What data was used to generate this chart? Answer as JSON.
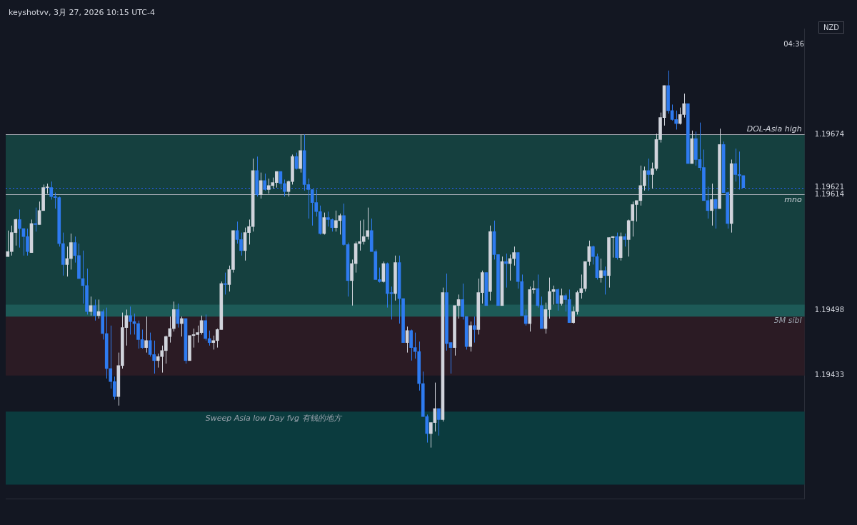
{
  "chart_data": {
    "type": "candlestick",
    "title": "keyshotvv, 3月 27, 2026 10:15 UTC-4",
    "ylabel": "NZD",
    "categories": [
      null,
      null,
      null,
      null,
      null,
      null,
      null,
      null,
      null,
      null,
      null,
      null,
      null,
      null,
      null,
      null,
      null,
      null,
      null,
      null,
      null,
      null,
      null,
      null,
      null,
      null,
      null,
      null,
      null,
      null,
      null,
      null,
      null,
      null,
      null,
      null,
      null,
      null,
      null,
      null,
      null,
      null,
      null,
      null,
      null,
      null,
      null,
      null,
      null,
      null,
      null,
      null,
      null,
      null,
      null,
      null,
      null,
      null,
      null,
      null,
      null,
      null,
      null,
      null,
      null,
      null,
      null,
      null,
      null,
      null,
      null,
      null,
      null,
      null,
      null,
      null,
      null,
      null,
      null,
      null,
      null,
      null,
      null,
      null,
      null,
      null,
      null,
      null,
      null,
      null,
      null,
      null,
      null,
      null,
      null,
      null,
      null,
      null,
      null,
      null,
      null,
      null,
      null,
      null,
      null,
      null,
      null,
      null,
      null,
      null,
      null,
      null,
      null,
      null,
      null,
      null,
      null,
      null,
      null,
      null,
      null,
      null,
      null,
      null,
      null,
      null,
      null,
      null,
      null,
      null,
      null,
      null,
      null,
      null,
      null,
      null,
      null,
      null,
      null,
      null,
      null,
      null,
      null,
      null,
      null,
      null,
      null,
      null,
      null,
      null,
      null,
      null,
      null,
      null,
      null,
      null,
      null,
      null,
      null,
      null,
      null,
      null,
      null,
      null,
      null,
      null,
      null,
      null,
      null,
      null,
      null,
      null,
      null,
      null,
      null,
      null,
      null,
      null,
      null,
      null,
      null,
      null,
      null,
      null,
      null,
      null,
      null,
      null,
      null,
      null,
      null,
      null,
      null,
      null,
      null,
      null,
      null,
      null,
      null,
      null,
      null,
      null
    ],
    "ohlc": [
      [
        1.19552,
        1.19578,
        1.19552,
        1.19557
      ],
      [
        1.19557,
        1.19583,
        1.19553,
        1.19576
      ],
      [
        1.19576,
        1.1959,
        1.19563,
        1.19589
      ],
      [
        1.19589,
        1.19599,
        1.19561,
        1.1958
      ],
      [
        1.1958,
        1.1958,
        1.19553,
        1.19572
      ],
      [
        1.19572,
        1.1958,
        1.19553,
        1.19557
      ],
      [
        1.19556,
        1.19589,
        1.19556,
        1.19585
      ],
      [
        1.19585,
        1.19601,
        1.19577,
        1.19584
      ],
      [
        1.19584,
        1.19607,
        1.19584,
        1.19598
      ],
      [
        1.19598,
        1.19624,
        1.19598,
        1.19621
      ],
      [
        1.19621,
        1.19625,
        1.19615,
        1.19621
      ],
      [
        1.19621,
        1.19627,
        1.19609,
        1.19612
      ],
      [
        1.19612,
        1.19616,
        1.196,
        1.19611
      ],
      [
        1.19611,
        1.19612,
        1.19562,
        1.19565
      ],
      [
        1.19565,
        1.19576,
        1.19533,
        1.19544
      ],
      [
        1.19544,
        1.19562,
        1.19532,
        1.1955
      ],
      [
        1.1955,
        1.19575,
        1.19539,
        1.19566
      ],
      [
        1.19566,
        1.19572,
        1.19546,
        1.19553
      ],
      [
        1.19553,
        1.19565,
        1.1953,
        1.1953
      ],
      [
        1.1953,
        1.19558,
        1.19505,
        1.19523
      ],
      [
        1.19523,
        1.1954,
        1.19494,
        1.19497
      ],
      [
        1.19497,
        1.19512,
        1.19493,
        1.19503
      ],
      [
        1.19503,
        1.19509,
        1.19488,
        1.19493
      ],
      [
        1.19493,
        1.19509,
        1.1949,
        1.19497
      ],
      [
        1.19497,
        1.19499,
        1.19469,
        1.19475
      ],
      [
        1.19475,
        1.19501,
        1.1943,
        1.1944
      ],
      [
        1.1944,
        1.19483,
        1.1942,
        1.19427
      ],
      [
        1.19427,
        1.19432,
        1.19409,
        1.19412
      ],
      [
        1.19412,
        1.19456,
        1.19403,
        1.19443
      ],
      [
        1.19443,
        1.19496,
        1.1944,
        1.19481
      ],
      [
        1.19481,
        1.19499,
        1.19463,
        1.19493
      ],
      [
        1.19493,
        1.19502,
        1.19474,
        1.19487
      ],
      [
        1.19487,
        1.19495,
        1.19474,
        1.19485
      ],
      [
        1.19485,
        1.19488,
        1.1946,
        1.19469
      ],
      [
        1.19469,
        1.19479,
        1.1946,
        1.19461
      ],
      [
        1.19461,
        1.19492,
        1.19456,
        1.19468
      ],
      [
        1.19468,
        1.19476,
        1.19452,
        1.19454
      ],
      [
        1.19454,
        1.19468,
        1.19435,
        1.19448
      ],
      [
        1.19448,
        1.19455,
        1.19441,
        1.19452
      ],
      [
        1.19452,
        1.19463,
        1.19436,
        1.19458
      ],
      [
        1.19458,
        1.19473,
        1.19445,
        1.19472
      ],
      [
        1.19472,
        1.19492,
        1.19466,
        1.1948
      ],
      [
        1.1948,
        1.19507,
        1.19477,
        1.19499
      ],
      [
        1.19499,
        1.19505,
        1.19481,
        1.19485
      ],
      [
        1.19485,
        1.19492,
        1.19472,
        1.1949
      ],
      [
        1.1949,
        1.1949,
        1.19445,
        1.19448
      ],
      [
        1.19448,
        1.19473,
        1.19448,
        1.19473
      ],
      [
        1.19473,
        1.1948,
        1.19461,
        1.19474
      ],
      [
        1.19474,
        1.19483,
        1.19466,
        1.19476
      ],
      [
        1.19476,
        1.19493,
        1.19474,
        1.19488
      ],
      [
        1.19488,
        1.19494,
        1.19468,
        1.1947
      ],
      [
        1.1947,
        1.19478,
        1.19463,
        1.19466
      ],
      [
        1.19466,
        1.19473,
        1.19459,
        1.19468
      ],
      [
        1.19468,
        1.1948,
        1.19461,
        1.19479
      ],
      [
        1.19479,
        1.19527,
        1.19479,
        1.19525
      ],
      [
        1.19525,
        1.19536,
        1.19514,
        1.19524
      ],
      [
        1.19524,
        1.19543,
        1.19517,
        1.19539
      ],
      [
        1.19539,
        1.19578,
        1.19536,
        1.19578
      ],
      [
        1.19578,
        1.19587,
        1.19565,
        1.19569
      ],
      [
        1.19569,
        1.19576,
        1.19553,
        1.19558
      ],
      [
        1.19558,
        1.19581,
        1.19548,
        1.19576
      ],
      [
        1.19576,
        1.19589,
        1.19564,
        1.19582
      ],
      [
        1.19582,
        1.1965,
        1.19577,
        1.19638
      ],
      [
        1.19638,
        1.19652,
        1.19612,
        1.19614
      ],
      [
        1.19614,
        1.19636,
        1.1961,
        1.19628
      ],
      [
        1.19628,
        1.19635,
        1.19618,
        1.19619
      ],
      [
        1.19619,
        1.1963,
        1.19615,
        1.19623
      ],
      [
        1.19623,
        1.19631,
        1.1962,
        1.19626
      ],
      [
        1.19626,
        1.19637,
        1.19621,
        1.19637
      ],
      [
        1.19637,
        1.19637,
        1.19619,
        1.19625
      ],
      [
        1.19625,
        1.19629,
        1.19612,
        1.19617
      ],
      [
        1.19617,
        1.19628,
        1.19612,
        1.19627
      ],
      [
        1.19627,
        1.19654,
        1.19624,
        1.19652
      ],
      [
        1.19652,
        1.19656,
        1.19639,
        1.1964
      ],
      [
        1.1964,
        1.19674,
        1.19636,
        1.19658
      ],
      [
        1.19658,
        1.19674,
        1.19618,
        1.19624
      ],
      [
        1.19624,
        1.1963,
        1.1959,
        1.19619
      ],
      [
        1.19619,
        1.19619,
        1.19583,
        1.19606
      ],
      [
        1.19606,
        1.19619,
        1.19592,
        1.19597
      ],
      [
        1.19597,
        1.19603,
        1.19574,
        1.19575
      ],
      [
        1.19575,
        1.19596,
        1.19574,
        1.19591
      ],
      [
        1.19591,
        1.19597,
        1.19582,
        1.19589
      ],
      [
        1.19589,
        1.1959,
        1.19577,
        1.19581
      ],
      [
        1.19581,
        1.19598,
        1.19577,
        1.19588
      ],
      [
        1.19588,
        1.19595,
        1.19574,
        1.19593
      ],
      [
        1.19593,
        1.19605,
        1.19563,
        1.19564
      ],
      [
        1.19564,
        1.19566,
        1.19512,
        1.19528
      ],
      [
        1.19528,
        1.19549,
        1.19503,
        1.19545
      ],
      [
        1.19545,
        1.19567,
        1.19536,
        1.19565
      ],
      [
        1.19565,
        1.19588,
        1.19558,
        1.19567
      ],
      [
        1.19567,
        1.19589,
        1.19564,
        1.19572
      ],
      [
        1.19572,
        1.19601,
        1.19569,
        1.19578
      ],
      [
        1.19578,
        1.1959,
        1.19557,
        1.19557
      ],
      [
        1.19557,
        1.19559,
        1.19529,
        1.19529
      ],
      [
        1.19529,
        1.19541,
        1.19526,
        1.19527
      ],
      [
        1.19527,
        1.19547,
        1.19526,
        1.19545
      ],
      [
        1.19545,
        1.19546,
        1.19501,
        1.19515
      ],
      [
        1.19516,
        1.19522,
        1.19489,
        1.19515
      ],
      [
        1.19515,
        1.19553,
        1.19508,
        1.19546
      ],
      [
        1.19546,
        1.19553,
        1.19485,
        1.1951
      ],
      [
        1.1951,
        1.1951,
        1.19466,
        1.19466
      ],
      [
        1.19466,
        1.19482,
        1.19456,
        1.19478
      ],
      [
        1.19478,
        1.19479,
        1.19448,
        1.19461
      ],
      [
        1.19461,
        1.19476,
        1.1945,
        1.19457
      ],
      [
        1.19457,
        1.19467,
        1.19418,
        1.19425
      ],
      [
        1.19425,
        1.19437,
        1.19392,
        1.19392
      ],
      [
        1.19392,
        1.19394,
        1.19366,
        1.19375
      ],
      [
        1.19375,
        1.19386,
        1.19361,
        1.19386
      ],
      [
        1.19386,
        1.19426,
        1.19377,
        1.194
      ],
      [
        1.194,
        1.194,
        1.19373,
        1.19389
      ],
      [
        1.19389,
        1.19521,
        1.19387,
        1.19516
      ],
      [
        1.19516,
        1.19535,
        1.19458,
        1.19465
      ],
      [
        1.19466,
        1.19466,
        1.19435,
        1.19461
      ],
      [
        1.19461,
        1.19503,
        1.19453,
        1.19503
      ],
      [
        1.19503,
        1.19514,
        1.1949,
        1.19509
      ],
      [
        1.19509,
        1.19525,
        1.19489,
        1.19492
      ],
      [
        1.19492,
        1.19492,
        1.19459,
        1.19462
      ],
      [
        1.19462,
        1.19487,
        1.19457,
        1.19483
      ],
      [
        1.19483,
        1.19492,
        1.19466,
        1.19479
      ],
      [
        1.19479,
        1.1953,
        1.19474,
        1.19516
      ],
      [
        1.19516,
        1.19538,
        1.19505,
        1.19536
      ],
      [
        1.19536,
        1.19536,
        1.19503,
        1.19503
      ],
      [
        1.19517,
        1.19583,
        1.19508,
        1.19577
      ],
      [
        1.19577,
        1.19588,
        1.19549,
        1.19554
      ],
      [
        1.19554,
        1.19554,
        1.19503,
        1.19503
      ],
      [
        1.19503,
        1.19552,
        1.19503,
        1.19547
      ],
      [
        1.19547,
        1.19555,
        1.19521,
        1.19545
      ],
      [
        1.19545,
        1.19554,
        1.19528,
        1.1955
      ],
      [
        1.1955,
        1.19562,
        1.19543,
        1.19556
      ],
      [
        1.19556,
        1.19556,
        1.1952,
        1.19527
      ],
      [
        1.19527,
        1.19534,
        1.19493,
        1.19493
      ],
      [
        1.19493,
        1.19499,
        1.19483,
        1.19485
      ],
      [
        1.19485,
        1.19522,
        1.19477,
        1.19519
      ],
      [
        1.19519,
        1.19528,
        1.19515,
        1.1952
      ],
      [
        1.1952,
        1.19534,
        1.19501,
        1.19503
      ],
      [
        1.19503,
        1.19512,
        1.1948,
        1.1948
      ],
      [
        1.1948,
        1.19506,
        1.19475,
        1.19499
      ],
      [
        1.19499,
        1.19531,
        1.1949,
        1.19517
      ],
      [
        1.19517,
        1.19523,
        1.19504,
        1.19519
      ],
      [
        1.19519,
        1.1952,
        1.19498,
        1.19505
      ],
      [
        1.19505,
        1.1952,
        1.19503,
        1.19513
      ],
      [
        1.19513,
        1.19515,
        1.19497,
        1.19509
      ],
      [
        1.19509,
        1.19519,
        1.19486,
        1.19486
      ],
      [
        1.19486,
        1.19502,
        1.19485,
        1.19497
      ],
      [
        1.19497,
        1.19518,
        1.19494,
        1.19516
      ],
      [
        1.19516,
        1.19534,
        1.1951,
        1.1952
      ],
      [
        1.1952,
        1.19547,
        1.19517,
        1.19547
      ],
      [
        1.19547,
        1.19568,
        1.19543,
        1.19562
      ],
      [
        1.19562,
        1.19563,
        1.19544,
        1.19552
      ],
      [
        1.19552,
        1.19555,
        1.19529,
        1.19531
      ],
      [
        1.19531,
        1.1955,
        1.19526,
        1.19538
      ],
      [
        1.19538,
        1.19542,
        1.19514,
        1.19533
      ],
      [
        1.19533,
        1.19571,
        1.19521,
        1.19571
      ],
      [
        1.19571,
        1.19572,
        1.19551,
        1.19572
      ],
      [
        1.19572,
        1.19576,
        1.19549,
        1.19551
      ],
      [
        1.19551,
        1.19576,
        1.19548,
        1.19572
      ],
      [
        1.19572,
        1.19575,
        1.19562,
        1.19569
      ],
      [
        1.19569,
        1.19589,
        1.19552,
        1.19588
      ],
      [
        1.19588,
        1.19607,
        1.19572,
        1.19604
      ],
      [
        1.19604,
        1.19608,
        1.19587,
        1.19608
      ],
      [
        1.19608,
        1.19643,
        1.19603,
        1.19623
      ],
      [
        1.19623,
        1.19642,
        1.19618,
        1.19638
      ],
      [
        1.19638,
        1.1965,
        1.19618,
        1.19634
      ],
      [
        1.19634,
        1.19646,
        1.1962,
        1.1964
      ],
      [
        1.1964,
        1.19675,
        1.19638,
        1.19669
      ],
      [
        1.19669,
        1.19696,
        1.19666,
        1.19691
      ],
      [
        1.19691,
        1.19723,
        1.19683,
        1.19723
      ],
      [
        1.19723,
        1.19738,
        1.19695,
        1.19698
      ],
      [
        1.19698,
        1.19704,
        1.19688,
        1.19689
      ],
      [
        1.19689,
        1.19698,
        1.19679,
        1.19685
      ],
      [
        1.19685,
        1.19701,
        1.19684,
        1.19694
      ],
      [
        1.19694,
        1.19715,
        1.19691,
        1.19705
      ],
      [
        1.19705,
        1.19705,
        1.19645,
        1.19645
      ],
      [
        1.19645,
        1.19678,
        1.19645,
        1.1967
      ],
      [
        1.1967,
        1.19677,
        1.19643,
        1.19649
      ],
      [
        1.19649,
        1.19686,
        1.19638,
        1.19641
      ],
      [
        1.19641,
        1.19659,
        1.19608,
        1.19608
      ],
      [
        1.19608,
        1.19622,
        1.1959,
        1.19598
      ],
      [
        1.19598,
        1.19625,
        1.19583,
        1.19609
      ],
      [
        1.19609,
        1.1961,
        1.1958,
        1.196
      ],
      [
        1.196,
        1.1968,
        1.196,
        1.19664
      ],
      [
        1.19664,
        1.19667,
        1.19616,
        1.19616
      ],
      [
        1.19616,
        1.19617,
        1.1958,
        1.19585
      ],
      [
        1.19585,
        1.19649,
        1.19576,
        1.19645
      ],
      [
        1.19645,
        1.1966,
        1.19627,
        1.19634
      ],
      [
        1.19634,
        1.19657,
        1.19619,
        1.19633
      ],
      [
        1.19633,
        1.19633,
        1.19621,
        1.19621
      ],
      null,
      null,
      null,
      null,
      null,
      null,
      null,
      null,
      null,
      null,
      null,
      null,
      null,
      null,
      null
    ],
    "colors": [
      "#d1d4dc",
      "#d1d4dc",
      "#d1d4dc",
      "#2e7bf0",
      "#2e7bf0",
      "#2e7bf0",
      "#d1d4dc",
      "#2e7bf0",
      "#d1d4dc",
      "#d1d4dc",
      "#d1d4dc",
      "#2e7bf0",
      "#2e7bf0",
      "#2e7bf0",
      "#2e7bf0",
      "#d1d4dc",
      "#d1d4dc",
      "#2e7bf0",
      "#2e7bf0",
      "#2e7bf0",
      "#2e7bf0",
      "#d1d4dc",
      "#2e7bf0",
      "#d1d4dc",
      "#2e7bf0",
      "#2e7bf0",
      "#2e7bf0",
      "#2e7bf0",
      "#d1d4dc",
      "#d1d4dc",
      "#d1d4dc",
      "#2e7bf0",
      "#2e7bf0",
      "#2e7bf0",
      "#2e7bf0",
      "#d1d4dc",
      "#2e7bf0",
      "#2e7bf0",
      "#d1d4dc",
      "#d1d4dc",
      "#d1d4dc",
      "#d1d4dc",
      "#d1d4dc",
      "#2e7bf0",
      "#d1d4dc",
      "#2e7bf0",
      "#d1d4dc",
      "#d1d4dc",
      "#d1d4dc",
      "#d1d4dc",
      "#2e7bf0",
      "#2e7bf0",
      "#d1d4dc",
      "#d1d4dc",
      "#d1d4dc",
      "#2e7bf0",
      "#d1d4dc",
      "#d1d4dc",
      "#2e7bf0",
      "#2e7bf0",
      "#d1d4dc",
      "#d1d4dc",
      "#d1d4dc",
      "#2e7bf0",
      "#d1d4dc",
      "#2e7bf0",
      "#d1d4dc",
      "#d1d4dc",
      "#d1d4dc",
      "#2e7bf0",
      "#2e7bf0",
      "#d1d4dc",
      "#d1d4dc",
      "#2e7bf0",
      "#d1d4dc",
      "#2e7bf0",
      "#2e7bf0",
      "#2e7bf0",
      "#2e7bf0",
      "#2e7bf0",
      "#d1d4dc",
      "#2e7bf0",
      "#2e7bf0",
      "#d1d4dc",
      "#d1d4dc",
      "#2e7bf0",
      "#2e7bf0",
      "#d1d4dc",
      "#d1d4dc",
      "#d1d4dc",
      "#d1d4dc",
      "#d1d4dc",
      "#2e7bf0",
      "#2e7bf0",
      "#2e7bf0",
      "#d1d4dc",
      "#2e7bf0",
      "#2e7bf0",
      "#d1d4dc",
      "#2e7bf0",
      "#2e7bf0",
      "#d1d4dc",
      "#2e7bf0",
      "#2e7bf0",
      "#2e7bf0",
      "#2e7bf0",
      "#2e7bf0",
      "#d1d4dc",
      "#d1d4dc",
      "#2e7bf0",
      "#d1d4dc",
      "#2e7bf0",
      "#2e7bf0",
      "#d1d4dc",
      "#d1d4dc",
      "#2e7bf0",
      "#2e7bf0",
      "#d1d4dc",
      "#2e7bf0",
      "#d1d4dc",
      "#d1d4dc",
      "#2e7bf0",
      "#d1d4dc",
      "#2e7bf0",
      "#2e7bf0",
      "#d1d4dc",
      "#2e7bf0",
      "#d1d4dc",
      "#d1d4dc",
      "#2e7bf0",
      "#2e7bf0",
      "#2e7bf0",
      "#d1d4dc",
      "#d1d4dc",
      "#2e7bf0",
      "#2e7bf0",
      "#d1d4dc",
      "#d1d4dc",
      "#d1d4dc",
      "#2e7bf0",
      "#d1d4dc",
      "#2e7bf0",
      "#2e7bf0",
      "#d1d4dc",
      "#d1d4dc",
      "#d1d4dc",
      "#d1d4dc",
      "#d1d4dc",
      "#2e7bf0",
      "#2e7bf0",
      "#d1d4dc",
      "#2e7bf0",
      "#d1d4dc",
      "#d1d4dc",
      "#2e7bf0",
      "#d1d4dc",
      "#2e7bf0",
      "#d1d4dc",
      "#d1d4dc",
      "#d1d4dc",
      "#d1d4dc",
      "#d1d4dc",
      "#2e7bf0",
      "#d1d4dc",
      "#d1d4dc",
      "#d1d4dc",
      "#d1d4dc",
      "#2e7bf0",
      "#2e7bf0",
      "#2e7bf0",
      "#d1d4dc",
      "#d1d4dc",
      "#2e7bf0",
      "#d1d4dc",
      "#2e7bf0",
      "#2e7bf0",
      "#2e7bf0",
      "#2e7bf0",
      "#d1d4dc",
      "#2e7bf0",
      "#d1d4dc",
      "#2e7bf0",
      "#2e7bf0",
      "#d1d4dc",
      "#2e7bf0",
      "#2e7bf0",
      "#2e7bf0",
      null,
      null,
      null,
      null,
      null,
      null,
      null,
      null,
      null,
      null,
      null,
      null,
      null,
      null,
      null
    ],
    "ylim": [
      1.1931,
      1.1978
    ],
    "yticks": [
      1.19433,
      1.19498,
      1.19614,
      1.19621,
      1.19674
    ],
    "tick_labels": "y",
    "ref_lines": [
      {
        "axis": "y",
        "value": 1.19674,
        "label": "DOL-Asia high",
        "color": "#b2b5be",
        "line_style": "solid"
      },
      {
        "axis": "y",
        "value": 1.19621,
        "color": "#2962ff",
        "line_style": "dotted"
      },
      {
        "axis": "y",
        "value": 1.19614,
        "label": "mno",
        "color": "#b2b5be",
        "line_style": "solid"
      }
    ],
    "bands": [
      {
        "axis": "y",
        "from": 1.19324,
        "to": 1.19397,
        "label": "Sweep Asia low Day fvg 有钱的地方",
        "color": "#0b3b3e"
      },
      {
        "axis": "y",
        "from": 1.19498,
        "to": 1.19674,
        "color": "#15403f"
      },
      {
        "axis": "y",
        "from": 1.19433,
        "to": 1.19498,
        "color": "#2b1b24"
      },
      {
        "axis": "y",
        "from": 1.19492,
        "to": 1.19504,
        "label": "5M sibl",
        "color": "#1d5a57"
      }
    ],
    "annotations": [
      "04:36"
    ]
  }
}
